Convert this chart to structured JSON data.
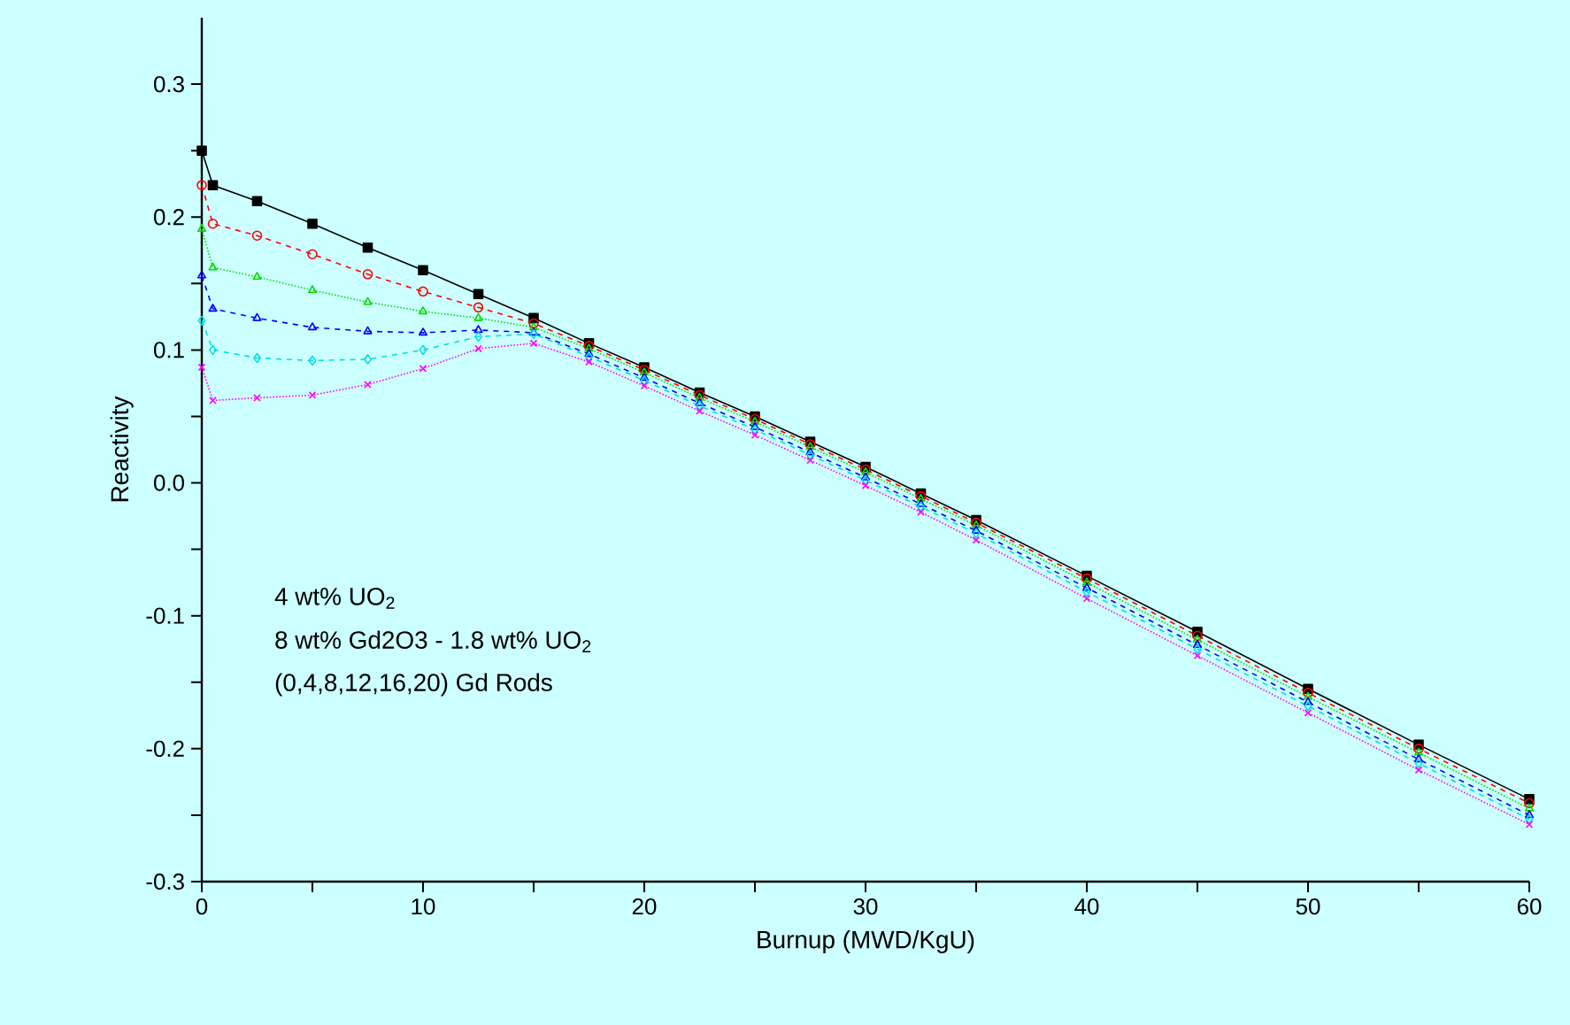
{
  "chart_data": {
    "type": "line",
    "xlabel": "Burnup (MWD/KgU)",
    "ylabel": "Reactivity",
    "xlim": [
      0,
      60
    ],
    "ylim": [
      -0.3,
      0.35
    ],
    "xticks": [
      0,
      {
        "value": 5,
        "label": null
      },
      10,
      {
        "value": 15,
        "label": null
      },
      20,
      {
        "value": 25,
        "label": null
      },
      30,
      {
        "value": 35,
        "label": null
      },
      40,
      {
        "value": 45,
        "label": null
      },
      50,
      {
        "value": 55,
        "label": null
      },
      60
    ],
    "yticks": [
      {
        "value": -0.3,
        "label": "-0.3"
      },
      {
        "value": -0.25,
        "label": null
      },
      {
        "value": -0.2,
        "label": "-0.2"
      },
      {
        "value": -0.15,
        "label": null
      },
      {
        "value": -0.1,
        "label": "-0.1"
      },
      {
        "value": -0.05,
        "label": null
      },
      {
        "value": 0,
        "label": "0.0"
      },
      {
        "value": 0.05,
        "label": null
      },
      {
        "value": 0.1,
        "label": "0.1"
      },
      {
        "value": 0.15,
        "label": null
      },
      {
        "value": 0.2,
        "label": "0.2"
      },
      {
        "value": 0.25,
        "label": null
      },
      {
        "value": 0.3,
        "label": "0.3"
      }
    ],
    "grid": false,
    "x": [
      0,
      0.5,
      2.5,
      5,
      7.5,
      10,
      12.5,
      15,
      17.5,
      20,
      22.5,
      25,
      27.5,
      30,
      32.5,
      35,
      40,
      45,
      50,
      55,
      60
    ],
    "series": [
      {
        "color": "#000000",
        "marker": "square",
        "line_style": "solid",
        "values": [
          0.25,
          0.224,
          0.212,
          0.195,
          0.177,
          0.16,
          0.142,
          0.124,
          0.105,
          0.087,
          0.068,
          0.05,
          0.031,
          0.012,
          -0.008,
          -0.028,
          -0.07,
          -0.112,
          -0.155,
          -0.197,
          -0.238
        ]
      },
      {
        "color": "#ff0000",
        "marker": "circle",
        "line_style": "dashed",
        "values": [
          0.224,
          0.195,
          0.186,
          0.172,
          0.157,
          0.144,
          0.132,
          0.12,
          0.103,
          0.085,
          0.066,
          0.048,
          0.029,
          0.01,
          -0.01,
          -0.03,
          -0.072,
          -0.115,
          -0.158,
          -0.2,
          -0.241
        ]
      },
      {
        "color": "#00dd00",
        "marker": "triangle",
        "line_style": "dotted",
        "values": [
          0.191,
          0.162,
          0.155,
          0.145,
          0.136,
          0.129,
          0.124,
          0.117,
          0.101,
          0.083,
          0.064,
          0.046,
          0.027,
          0.008,
          -0.012,
          -0.032,
          -0.075,
          -0.118,
          -0.161,
          -0.203,
          -0.245
        ]
      },
      {
        "color": "#0000ff",
        "marker": "triangle-down",
        "line_style": "dashed",
        "values": [
          0.156,
          0.131,
          0.124,
          0.117,
          0.114,
          0.113,
          0.115,
          0.113,
          0.097,
          0.079,
          0.06,
          0.042,
          0.023,
          0.004,
          -0.016,
          -0.036,
          -0.079,
          -0.122,
          -0.165,
          -0.208,
          -0.25
        ]
      },
      {
        "color": "#00e0e0",
        "marker": "diamond",
        "line_style": "dashed",
        "values": [
          0.122,
          0.1,
          0.094,
          0.092,
          0.093,
          0.1,
          0.11,
          0.112,
          0.095,
          0.077,
          0.058,
          0.04,
          0.021,
          0.002,
          -0.018,
          -0.038,
          -0.082,
          -0.125,
          -0.168,
          -0.211,
          -0.253
        ]
      },
      {
        "color": "#ff00ff",
        "marker": "cross",
        "line_style": "dotted",
        "values": [
          0.087,
          0.062,
          0.064,
          0.066,
          0.074,
          0.086,
          0.101,
          0.105,
          0.091,
          0.073,
          0.054,
          0.036,
          0.017,
          -0.002,
          -0.022,
          -0.043,
          -0.087,
          -0.13,
          -0.173,
          -0.216,
          -0.257
        ]
      }
    ],
    "annotations": [
      "4 wt% UO$_{2}$",
      "8 wt% Gd2O3 - 1.8 wt% UO$_{2}$",
      "(0,4,8,12,16,20) Gd Rods"
    ]
  }
}
